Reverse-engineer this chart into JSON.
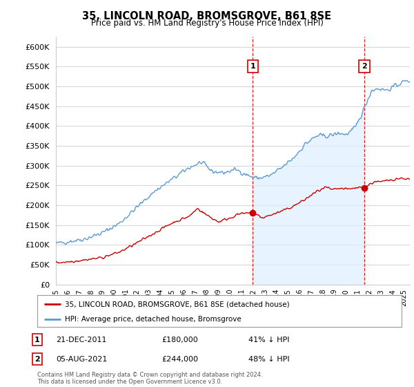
{
  "title": "35, LINCOLN ROAD, BROMSGROVE, B61 8SE",
  "subtitle": "Price paid vs. HM Land Registry's House Price Index (HPI)",
  "ylabel_ticks": [
    0,
    50000,
    100000,
    150000,
    200000,
    250000,
    300000,
    350000,
    400000,
    450000,
    500000,
    550000,
    600000
  ],
  "ylim": [
    0,
    625000
  ],
  "xlim_start": 1995.0,
  "xlim_end": 2025.5,
  "hpi_color": "#5b9bd5",
  "hpi_fill_color": "#ddeeff",
  "house_color": "#cc0000",
  "transaction1_year": 2011.97,
  "transaction1_value": 180000,
  "transaction1_label": "1",
  "transaction1_date": "21-DEC-2011",
  "transaction1_hpi_pct": "41% ↓ HPI",
  "transaction2_year": 2021.58,
  "transaction2_value": 244000,
  "transaction2_label": "2",
  "transaction2_date": "05-AUG-2021",
  "transaction2_hpi_pct": "48% ↓ HPI",
  "legend_house": "35, LINCOLN ROAD, BROMSGROVE, B61 8SE (detached house)",
  "legend_hpi": "HPI: Average price, detached house, Bromsgrove",
  "footer": "Contains HM Land Registry data © Crown copyright and database right 2024.\nThis data is licensed under the Open Government Licence v3.0.",
  "background_color": "#ffffff",
  "grid_color": "#cccccc"
}
